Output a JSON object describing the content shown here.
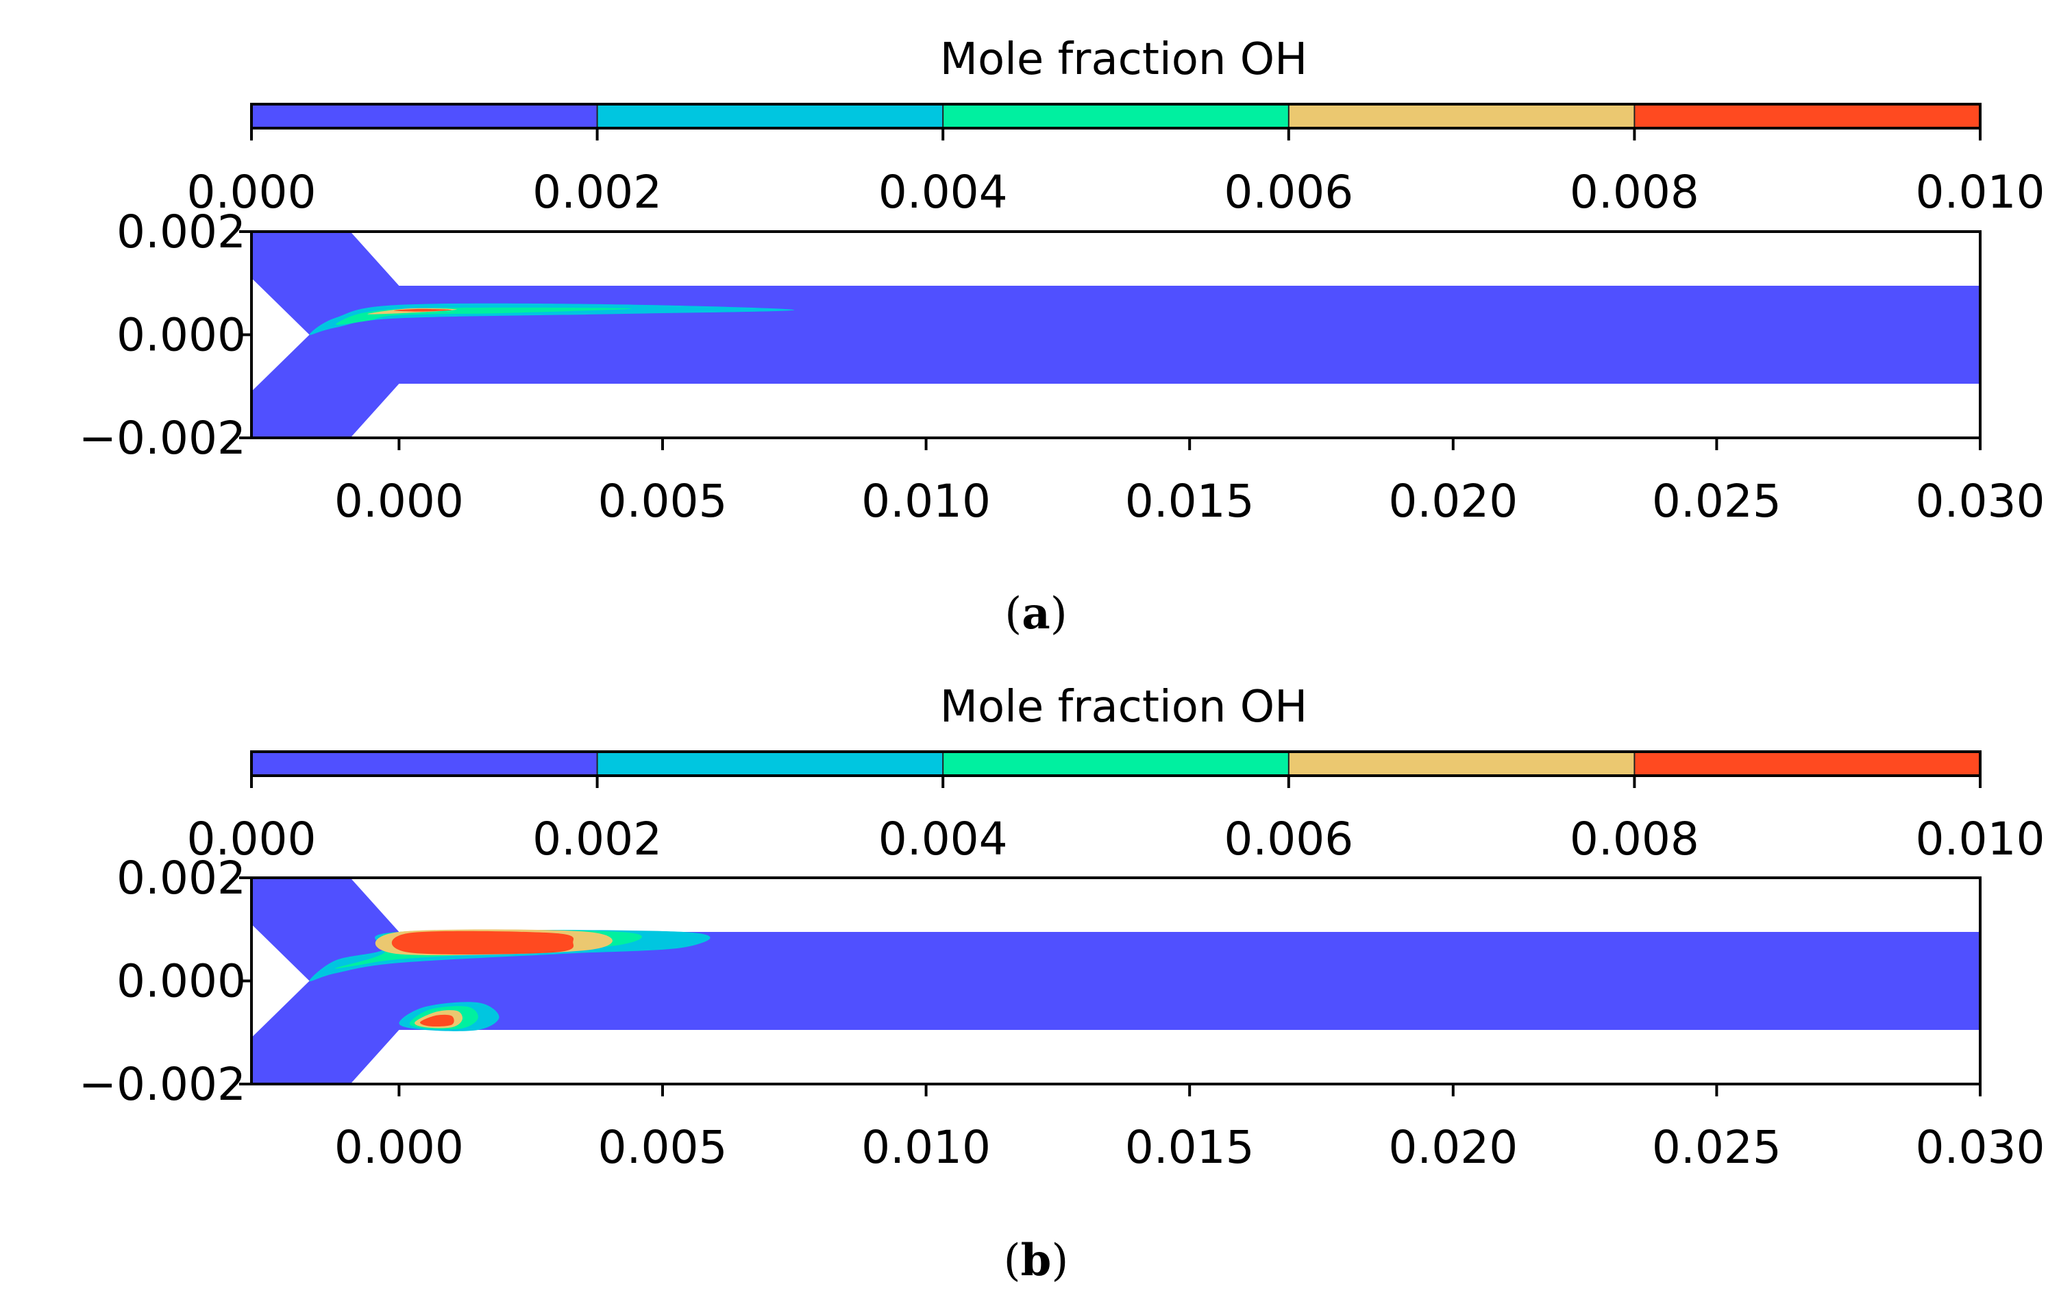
{
  "chart_data": [
    {
      "type": "heatmap",
      "panel_label": "a",
      "colorbar": {
        "title": "Mole fraction OH",
        "ticks": [
          "0.000",
          "0.002",
          "0.004",
          "0.006",
          "0.008",
          "0.010"
        ],
        "levels": [
          0.0,
          0.002,
          0.004,
          0.006,
          0.008,
          0.01
        ],
        "colors": [
          "#5050FF",
          "#00C6E0",
          "#00F0A0",
          "#EBC870",
          "#FF4A20"
        ]
      },
      "xlim": [
        -0.0028,
        0.03
      ],
      "ylim": [
        -0.002,
        0.002
      ],
      "xticks": [
        "0.000",
        "0.005",
        "0.010",
        "0.015",
        "0.020",
        "0.025",
        "0.030"
      ],
      "xtick_values": [
        0.0,
        0.005,
        0.01,
        0.015,
        0.02,
        0.025,
        0.03
      ],
      "yticks": [
        "0.002",
        "0.000",
        "−0.002"
      ],
      "ytick_values": [
        0.002,
        0.0,
        -0.002
      ],
      "domain": {
        "channel_half_height": 0.00095,
        "channel_x": [
          0.0,
          0.03
        ],
        "inlet_x": [
          -0.0028,
          0.0
        ],
        "junction_x": -0.0017
      },
      "contours": [
        {
          "level_index": 1,
          "points": [
            [
              -0.0017,
              0.0
            ],
            [
              -0.0012,
              0.00033
            ],
            [
              0.0,
              0.00058
            ],
            [
              0.004,
              0.00059
            ],
            [
              0.0075,
              0.00048
            ],
            [
              0.004,
              0.0004
            ],
            [
              0.0,
              0.00032
            ],
            [
              -0.0012,
              0.00014
            ]
          ]
        },
        {
          "level_index": 2,
          "points": [
            [
              -0.0012,
              0.0002
            ],
            [
              -0.0006,
              0.00044
            ],
            [
              0.0008,
              0.00052
            ],
            [
              0.0044,
              0.00051
            ],
            [
              0.002,
              0.00042
            ],
            [
              0.0,
              0.00038
            ],
            [
              -0.0006,
              0.00027
            ]
          ]
        },
        {
          "level_index": 3,
          "points": [
            [
              -0.0006,
              0.0004
            ],
            [
              0.0002,
              0.00051
            ],
            [
              0.0011,
              0.00049
            ],
            [
              0.0003,
              0.00043
            ]
          ]
        },
        {
          "level_index": 4,
          "points": [
            [
              -0.0001,
              0.00047
            ],
            [
              0.0004,
              0.0005
            ],
            [
              0.001,
              0.00048
            ],
            [
              0.0004,
              0.00045
            ]
          ]
        }
      ]
    },
    {
      "type": "heatmap",
      "panel_label": "b",
      "colorbar": {
        "title": "Mole fraction OH",
        "ticks": [
          "0.000",
          "0.002",
          "0.004",
          "0.006",
          "0.008",
          "0.010"
        ],
        "levels": [
          0.0,
          0.002,
          0.004,
          0.006,
          0.008,
          0.01
        ],
        "colors": [
          "#5050FF",
          "#00C6E0",
          "#00F0A0",
          "#EBC870",
          "#FF4A20"
        ]
      },
      "xlim": [
        -0.0028,
        0.03
      ],
      "ylim": [
        -0.002,
        0.002
      ],
      "xticks": [
        "0.000",
        "0.005",
        "0.010",
        "0.015",
        "0.020",
        "0.025",
        "0.030"
      ],
      "xtick_values": [
        0.0,
        0.005,
        0.01,
        0.015,
        0.02,
        0.025,
        0.03
      ],
      "yticks": [
        "0.002",
        "0.000",
        "−0.002"
      ],
      "ytick_values": [
        0.002,
        0.0,
        -0.002
      ],
      "domain": {
        "channel_half_height": 0.00095,
        "channel_x": [
          0.0,
          0.03
        ],
        "inlet_x": [
          -0.0028,
          0.0
        ],
        "junction_x": -0.0017
      },
      "contours": [
        {
          "level_index": 1,
          "points": [
            [
              -0.0017,
              0.0
            ],
            [
              -0.0012,
              0.0004
            ],
            [
              -0.0003,
              0.0006
            ],
            [
              0.0,
              0.00095
            ],
            [
              0.0054,
              0.00095
            ],
            [
              0.0054,
              0.00065
            ],
            [
              0.003,
              0.00052
            ],
            [
              0.0,
              0.00035
            ],
            [
              -0.0012,
              0.00015
            ]
          ]
        },
        {
          "level_index": 2,
          "points": [
            [
              -0.0012,
              0.00025
            ],
            [
              -0.0003,
              0.00053
            ],
            [
              0.0,
              0.00095
            ],
            [
              0.0042,
              0.00095
            ],
            [
              0.0042,
              0.0007
            ],
            [
              0.002,
              0.00055
            ],
            [
              0.0,
              0.00042
            ],
            [
              -0.0008,
              0.0003
            ]
          ]
        },
        {
          "level_index": 3,
          "points": [
            [
              0.0,
              0.00095
            ],
            [
              0.0036,
              0.00095
            ],
            [
              0.0036,
              0.0006
            ],
            [
              0.0,
              0.00052
            ]
          ]
        },
        {
          "level_index": 4,
          "points": [
            [
              0.0002,
              0.00093
            ],
            [
              0.0029,
              0.00093
            ],
            [
              0.0033,
              0.00075
            ],
            [
              0.0029,
              0.00055
            ],
            [
              0.0002,
              0.00055
            ]
          ]
        },
        {
          "level_index": 1,
          "points": [
            [
              0.0,
              -0.00082
            ],
            [
              0.0005,
              -0.0005
            ],
            [
              0.0015,
              -0.00042
            ],
            [
              0.0019,
              -0.0007
            ],
            [
              0.0015,
              -0.00095
            ],
            [
              0.0005,
              -0.00095
            ]
          ]
        },
        {
          "level_index": 2,
          "points": [
            [
              0.0002,
              -0.00082
            ],
            [
              0.0006,
              -0.00055
            ],
            [
              0.0013,
              -0.0005
            ],
            [
              0.0015,
              -0.00072
            ],
            [
              0.0012,
              -0.00092
            ],
            [
              0.0005,
              -0.00092
            ]
          ]
        },
        {
          "level_index": 3,
          "points": [
            [
              0.0003,
              -0.0008
            ],
            [
              0.0007,
              -0.0006
            ],
            [
              0.0011,
              -0.00058
            ],
            [
              0.0012,
              -0.00075
            ],
            [
              0.001,
              -0.0009
            ],
            [
              0.0005,
              -0.0009
            ]
          ]
        },
        {
          "level_index": 4,
          "points": [
            [
              0.0004,
              -0.0008
            ],
            [
              0.0007,
              -0.00067
            ],
            [
              0.001,
              -0.00068
            ],
            [
              0.001,
              -0.00085
            ],
            [
              0.0006,
              -0.00088
            ]
          ]
        }
      ]
    }
  ]
}
